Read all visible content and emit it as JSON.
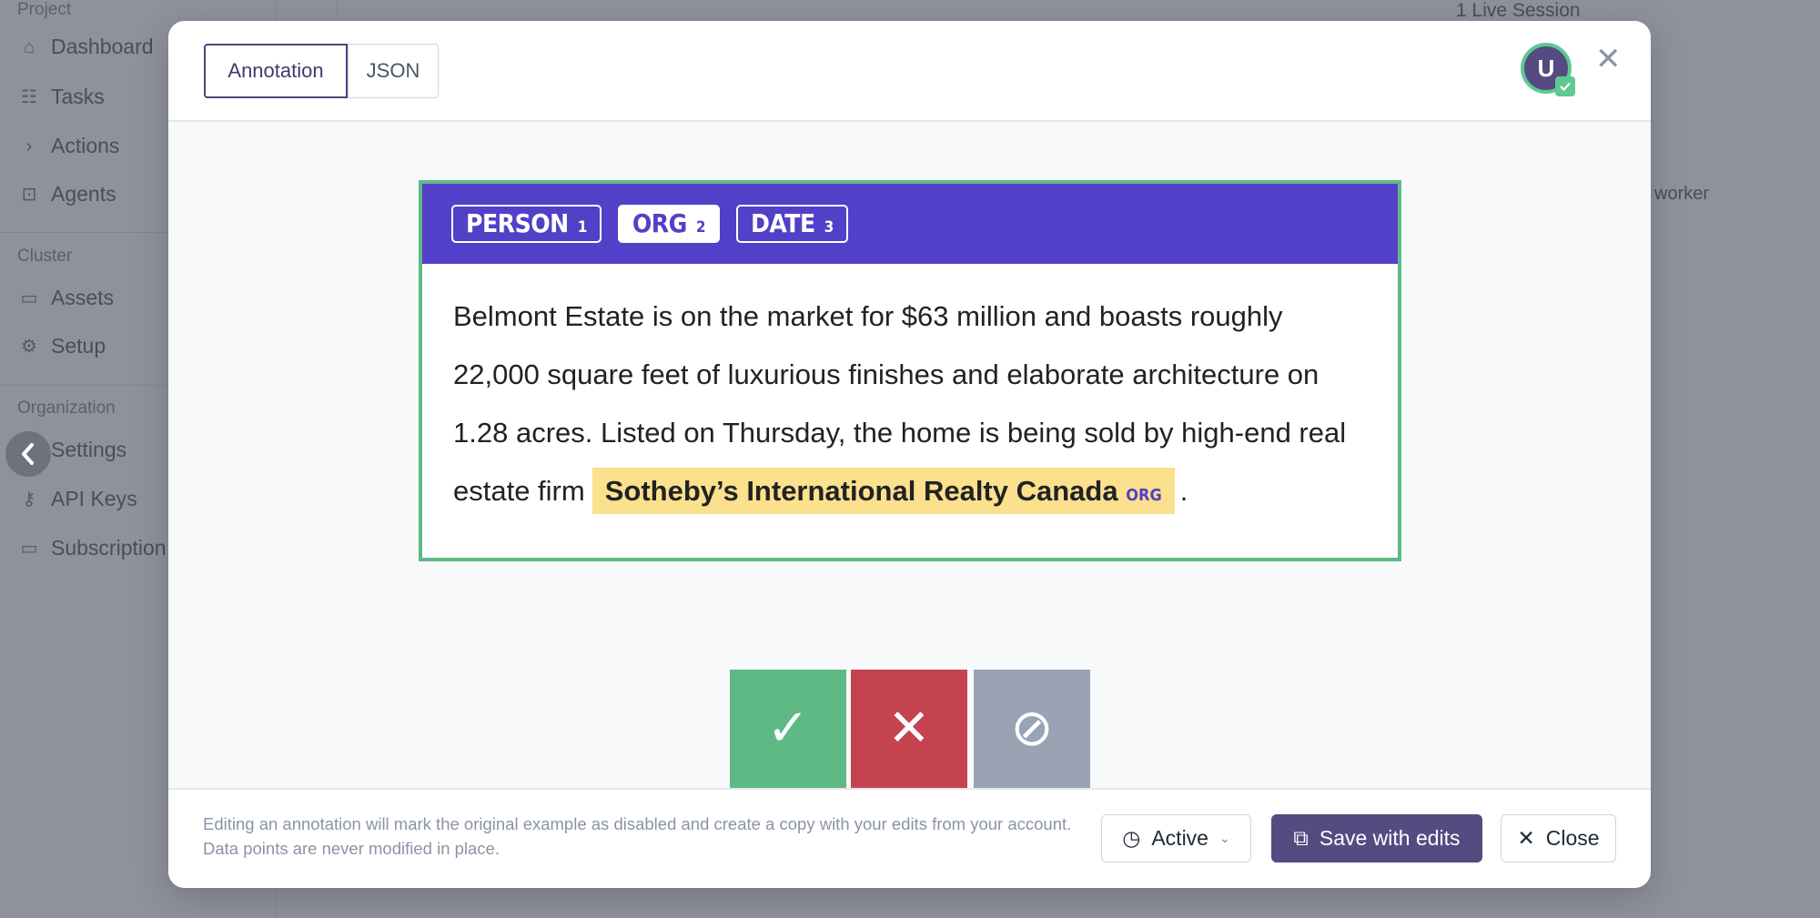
{
  "background": {
    "sidebar": {
      "sections": [
        {
          "title": "Project",
          "items": [
            {
              "label": "Dashboard",
              "icon": "home-icon"
            },
            {
              "label": "Tasks",
              "icon": "tasks-icon"
            },
            {
              "label": "Actions",
              "icon": "terminal-icon"
            },
            {
              "label": "Agents",
              "icon": "robot-icon"
            }
          ]
        },
        {
          "title": "Cluster",
          "items": [
            {
              "label": "Assets",
              "icon": "folder-icon"
            },
            {
              "label": "Setup",
              "icon": "gear-icon"
            }
          ]
        },
        {
          "title": "Organization",
          "items": [
            {
              "label": "Settings",
              "icon": "user-circle-icon"
            },
            {
              "label": "API Keys",
              "icon": "key-icon"
            },
            {
              "label": "Subscription",
              "icon": "credit-card-icon"
            }
          ]
        }
      ]
    },
    "live_session": "1 Live Session",
    "worker_text": "worker"
  },
  "modal": {
    "tabs": [
      {
        "label": "Annotation",
        "active": true
      },
      {
        "label": "JSON",
        "active": false
      }
    ],
    "avatar_initial": "U",
    "labels": [
      {
        "name": "PERSON",
        "key": "1"
      },
      {
        "name": "ORG",
        "key": "2",
        "selected": true
      },
      {
        "name": "DATE",
        "key": "3"
      }
    ],
    "text_before": "Belmont Estate is on the market for $63 million and boasts roughly 22,000 square feet of luxurious finishes and elaborate architecture on 1.28 acres. Listed on Thursday, the home is being sold by high-end real estate firm",
    "entity": {
      "text": "Sotheby’s International Realty Canada",
      "label": "ORG"
    },
    "text_after": ".",
    "review_buttons": [
      {
        "action": "accept",
        "icon": "check-icon",
        "color": "#5eb984"
      },
      {
        "action": "reject",
        "icon": "x-icon",
        "color": "#c4434f"
      },
      {
        "action": "ignore",
        "icon": "ban-icon",
        "color": "#9aa3b4"
      }
    ],
    "footer_note": "Editing an annotation will mark the original example as disabled and create a copy with your edits from your account. Data points are never modified in place.",
    "status": "Active",
    "save_label": "Save with edits",
    "close_label": "Close"
  },
  "colors": {
    "accent": "#5340c8",
    "primary_button": "#554b80",
    "success": "#5dba84",
    "highlight": "#fbe08e"
  }
}
